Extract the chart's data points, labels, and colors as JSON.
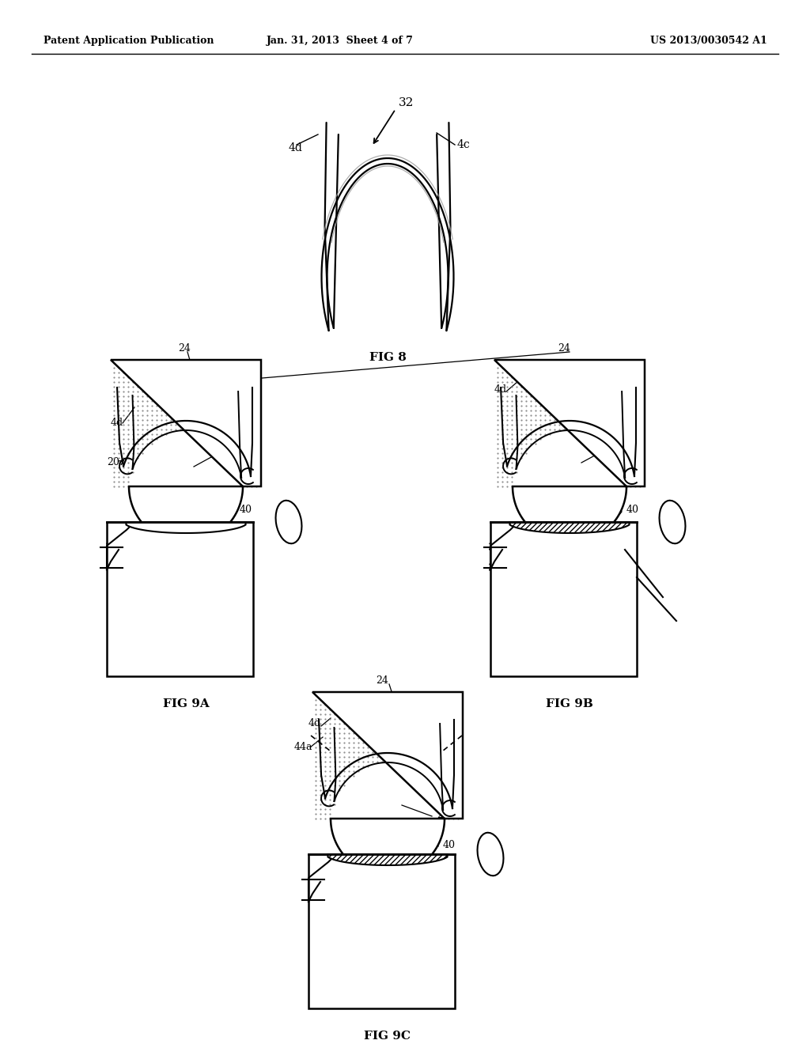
{
  "header_left": "Patent Application Publication",
  "header_mid": "Jan. 31, 2013  Sheet 4 of 7",
  "header_right": "US 2013/0030542 A1",
  "fig8_label": "FIG 8",
  "fig9a_label": "FIG 9A",
  "fig9b_label": "FIG 9B",
  "fig9c_label": "FIG 9C",
  "bg_color": "#ffffff",
  "line_color": "#000000"
}
